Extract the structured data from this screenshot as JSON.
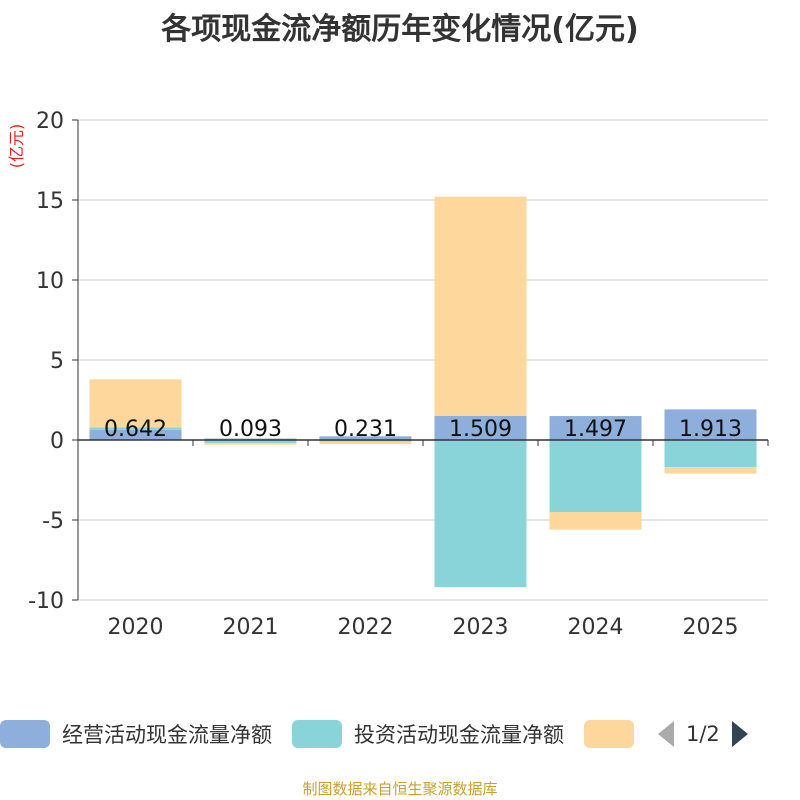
{
  "title": "各项现金流净额历年变化情况(亿元)",
  "source": "制图数据来自恒生聚源数据库",
  "legend_page": "1/2",
  "chart_data": {
    "type": "bar",
    "stacked": true,
    "title": "各项现金流净额历年变化情况(亿元)",
    "ylabel": "(亿元)",
    "ylim": [
      -10,
      20
    ],
    "yticks": [
      "20",
      "15",
      "10",
      "5",
      "0",
      "-5",
      "-10"
    ],
    "ytick_values": [
      20,
      15,
      10,
      5,
      0,
      -5,
      -10
    ],
    "categories": [
      "2020",
      "2021",
      "2022",
      "2023",
      "2024",
      "2025"
    ],
    "series": [
      {
        "name": "经营活动现金流量净额",
        "color": "#8eaedb",
        "values": [
          0.642,
          0.093,
          0.231,
          1.509,
          1.497,
          1.913
        ]
      },
      {
        "name": "投资活动现金流量净额",
        "color": "#88d4d8",
        "values": [
          0.15,
          -0.2,
          -0.1,
          -9.2,
          -4.5,
          -1.7
        ]
      },
      {
        "name": "",
        "color": "#fdd79b",
        "values": [
          3.0,
          -0.1,
          -0.15,
          13.7,
          -1.1,
          -0.4
        ]
      }
    ],
    "data_labels": [
      "0.642",
      "0.093",
      "0.231",
      "1.509",
      "1.497",
      "1.913"
    ],
    "grid": true,
    "legend_position": "bottom"
  }
}
